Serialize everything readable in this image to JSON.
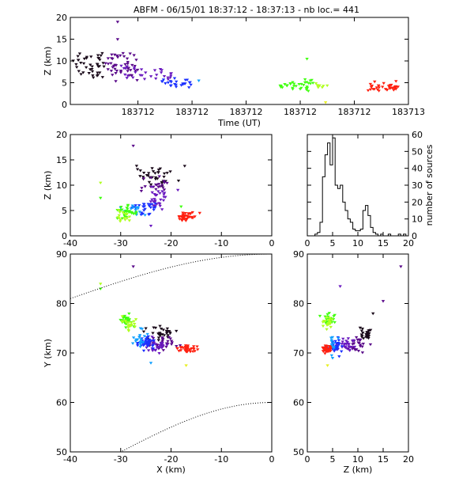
{
  "header": {
    "title": "ABFM - 06/15/01 18:37:12 - 18:37:13 - nb loc.=     441"
  },
  "colors": {
    "dark": "#1a0a1a",
    "purple": "#5a0a8a",
    "violet": "#6a1ac0",
    "blue": "#1a30ff",
    "cyan": "#10a0ff",
    "green": "#40ff10",
    "yellow_green": "#b0ff20",
    "yellow": "#e8f020",
    "red": "#ff2010"
  },
  "chart_data": [
    {
      "id": "time_height",
      "type": "scatter",
      "title": "ABFM - 06/15/01 18:37:12 - 18:37:13 - nb loc.=     441",
      "xlabel": "Time (UT)",
      "ylabel": "Z (km)",
      "xlim": [
        0,
        1
      ],
      "ylim": [
        0,
        20
      ],
      "x_tick_labels": [
        "183712",
        "183712",
        "183712",
        "183712",
        "183712",
        "183713"
      ],
      "x_tick_values": [
        0.2,
        0.36,
        0.52,
        0.68,
        0.84,
        1.0
      ],
      "y_ticks": [
        0,
        5,
        10,
        15,
        20
      ],
      "clusters": [
        {
          "color": "dark",
          "x_range": [
            0.0,
            0.1
          ],
          "z_center": 9.5,
          "z_spread": 3.0,
          "n": 45
        },
        {
          "color": "purple",
          "x_range": [
            0.1,
            0.2
          ],
          "z_center": 9.0,
          "z_spread": 2.5,
          "n": 50
        },
        {
          "color": "violet",
          "x_range": [
            0.15,
            0.3
          ],
          "z_center": 7.0,
          "z_spread": 1.5,
          "n": 30
        },
        {
          "color": "blue",
          "x_range": [
            0.27,
            0.36
          ],
          "z_center": 5.0,
          "z_spread": 0.8,
          "n": 25
        },
        {
          "color": "green",
          "x_range": [
            0.62,
            0.72
          ],
          "z_center": 4.5,
          "z_spread": 1.0,
          "n": 35
        },
        {
          "color": "yellow_green",
          "x_range": [
            0.72,
            0.76
          ],
          "z_center": 4.5,
          "z_spread": 1.0,
          "n": 8
        },
        {
          "color": "red",
          "x_range": [
            0.88,
            0.97
          ],
          "z_center": 4.0,
          "z_spread": 0.8,
          "n": 40
        }
      ],
      "outliers": [
        {
          "color": "purple",
          "x": 0.14,
          "z": 19.0
        },
        {
          "color": "purple",
          "x": 0.14,
          "z": 15.0
        },
        {
          "color": "green",
          "x": 0.7,
          "z": 10.5
        },
        {
          "color": "yellow",
          "x": 0.755,
          "z": 0.5
        },
        {
          "color": "cyan",
          "x": 0.38,
          "z": 5.5
        }
      ]
    },
    {
      "id": "x_z",
      "type": "scatter",
      "xlabel": "",
      "ylabel": "Z (km)",
      "xlim": [
        -40,
        0
      ],
      "ylim": [
        0,
        20
      ],
      "x_ticks": [
        -40,
        -30,
        -20,
        -10,
        0
      ],
      "y_ticks": [
        0,
        5,
        10,
        15,
        20
      ],
      "clusters": [
        {
          "color": "dark",
          "x_center": -23.0,
          "z_center": 12.0,
          "x_spread": 2.5,
          "z_spread": 1.5,
          "n": 35
        },
        {
          "color": "purple",
          "x_center": -23.0,
          "z_center": 10.0,
          "x_spread": 2.0,
          "z_spread": 1.5,
          "n": 20
        },
        {
          "color": "violet",
          "x_center": -22.5,
          "z_center": 7.5,
          "x_spread": 2.0,
          "z_spread": 1.8,
          "n": 30
        },
        {
          "color": "blue",
          "x_center": -25.0,
          "z_center": 5.5,
          "x_spread": 2.0,
          "z_spread": 1.0,
          "n": 25
        },
        {
          "color": "cyan",
          "x_center": -27.0,
          "z_center": 5.0,
          "x_spread": 1.5,
          "z_spread": 0.8,
          "n": 15
        },
        {
          "color": "green",
          "x_center": -29.0,
          "z_center": 4.5,
          "x_spread": 1.5,
          "z_spread": 1.0,
          "n": 30
        },
        {
          "color": "yellow_green",
          "x_center": -29.5,
          "z_center": 4.0,
          "x_spread": 1.2,
          "z_spread": 1.0,
          "n": 15
        },
        {
          "color": "red",
          "x_center": -17.0,
          "z_center": 3.8,
          "x_spread": 1.5,
          "z_spread": 0.8,
          "n": 40
        }
      ],
      "outliers": [
        {
          "color": "purple",
          "x": -27.5,
          "z": 17.8
        },
        {
          "color": "yellow_green",
          "x": -34.0,
          "z": 10.5
        },
        {
          "color": "green",
          "x": -34.0,
          "z": 7.5
        },
        {
          "color": "violet",
          "x": -24.0,
          "z": 2.0
        },
        {
          "color": "green",
          "x": -18.0,
          "z": 5.8
        }
      ]
    },
    {
      "id": "z_histogram",
      "type": "histogram",
      "xlabel": "",
      "ylabel": "number of sources",
      "xlim": [
        0,
        20
      ],
      "ylim": [
        0,
        60
      ],
      "x_ticks": [
        0,
        5,
        10,
        15,
        20
      ],
      "y_ticks": [
        0,
        10,
        20,
        30,
        40,
        50,
        60
      ],
      "bin_width": 0.5,
      "bins_start": 0,
      "counts": [
        0,
        0,
        0,
        1,
        2,
        8,
        35,
        48,
        55,
        42,
        58,
        30,
        28,
        30,
        20,
        15,
        10,
        8,
        4,
        3,
        3,
        4,
        15,
        18,
        12,
        5,
        2,
        1,
        0,
        1,
        0,
        0,
        1,
        0,
        0,
        0,
        1,
        0,
        1,
        0
      ]
    },
    {
      "id": "x_y",
      "type": "scatter",
      "xlabel": "X (km)",
      "ylabel": "Y (km)",
      "xlim": [
        -40,
        0
      ],
      "ylim": [
        50,
        90
      ],
      "x_ticks": [
        -40,
        -30,
        -20,
        -10,
        0
      ],
      "y_ticks": [
        50,
        60,
        70,
        80,
        90
      ],
      "clusters": [
        {
          "color": "dark",
          "x_center": -22.0,
          "y_center": 74.0,
          "x_spread": 2.0,
          "y_spread": 1.2,
          "n": 30
        },
        {
          "color": "purple",
          "x_center": -21.5,
          "y_center": 72.0,
          "x_spread": 1.8,
          "y_spread": 1.3,
          "n": 30
        },
        {
          "color": "violet",
          "x_center": -23.0,
          "y_center": 71.5,
          "x_spread": 2.0,
          "y_spread": 1.2,
          "n": 30
        },
        {
          "color": "blue",
          "x_center": -25.0,
          "y_center": 72.0,
          "x_spread": 1.5,
          "y_spread": 1.2,
          "n": 35
        },
        {
          "color": "cyan",
          "x_center": -26.0,
          "y_center": 72.5,
          "x_spread": 1.5,
          "y_spread": 1.5,
          "n": 20
        },
        {
          "color": "green",
          "x_center": -29.0,
          "y_center": 76.5,
          "x_spread": 1.0,
          "y_spread": 1.3,
          "n": 30
        },
        {
          "color": "yellow_green",
          "x_center": -28.5,
          "y_center": 76.0,
          "x_spread": 1.0,
          "y_spread": 1.2,
          "n": 20
        },
        {
          "color": "red",
          "x_center": -17.0,
          "y_center": 70.8,
          "x_spread": 1.5,
          "y_spread": 0.6,
          "n": 40
        }
      ],
      "outliers": [
        {
          "color": "purple",
          "x": -27.5,
          "y": 87.5
        },
        {
          "color": "yellow_green",
          "x": -34.0,
          "y": 84.0
        },
        {
          "color": "green",
          "x": -34.0,
          "y": 83.0
        },
        {
          "color": "cyan",
          "x": -24.0,
          "y": 68.0
        },
        {
          "color": "yellow",
          "x": -17.0,
          "y": 67.5
        },
        {
          "color": "dark",
          "x": -25.0,
          "y": 75.0
        }
      ]
    },
    {
      "id": "z_y",
      "type": "scatter",
      "xlabel": "Z (km)",
      "ylabel": "",
      "xlim": [
        0,
        20
      ],
      "ylim": [
        50,
        90
      ],
      "x_ticks": [
        0,
        5,
        10,
        15,
        20
      ],
      "y_ticks": [
        50,
        60,
        70,
        80,
        90
      ],
      "clusters": [
        {
          "color": "dark",
          "z_center": 11.5,
          "y_center": 74.0,
          "z_spread": 1.0,
          "y_spread": 1.2,
          "n": 25
        },
        {
          "color": "purple",
          "z_center": 10.0,
          "y_center": 72.0,
          "z_spread": 1.5,
          "y_spread": 1.5,
          "n": 25
        },
        {
          "color": "violet",
          "z_center": 7.5,
          "y_center": 71.5,
          "z_spread": 1.5,
          "y_spread": 1.3,
          "n": 30
        },
        {
          "color": "blue",
          "z_center": 5.5,
          "y_center": 71.5,
          "z_spread": 1.0,
          "y_spread": 1.3,
          "n": 35
        },
        {
          "color": "cyan",
          "z_center": 5.0,
          "y_center": 72.0,
          "z_spread": 0.8,
          "y_spread": 1.5,
          "n": 15
        },
        {
          "color": "green",
          "z_center": 4.5,
          "y_center": 76.5,
          "z_spread": 0.8,
          "y_spread": 1.3,
          "n": 25
        },
        {
          "color": "yellow_green",
          "z_center": 4.0,
          "y_center": 76.0,
          "z_spread": 0.8,
          "y_spread": 1.5,
          "n": 20
        },
        {
          "color": "red",
          "z_center": 3.8,
          "y_center": 71.0,
          "z_spread": 0.8,
          "y_spread": 0.8,
          "n": 40
        }
      ],
      "outliers": [
        {
          "color": "purple",
          "z": 18.5,
          "y": 87.5
        },
        {
          "color": "purple",
          "z": 15.0,
          "y": 80.5
        },
        {
          "color": "violet",
          "z": 6.5,
          "y": 83.5
        },
        {
          "color": "dark",
          "z": 13.0,
          "y": 78.0
        },
        {
          "color": "green",
          "z": 2.5,
          "y": 77.5
        },
        {
          "color": "yellow",
          "z": 4.0,
          "y": 67.5
        },
        {
          "color": "cyan",
          "z": 5.0,
          "y": 69.0
        }
      ]
    }
  ]
}
